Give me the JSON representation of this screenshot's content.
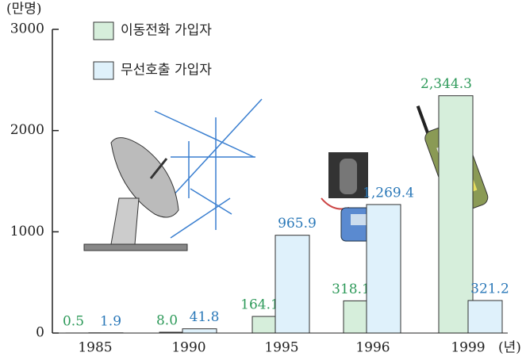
{
  "chart_data": {
    "type": "bar",
    "y_axis_label": "(만명)",
    "x_axis_label": "(년)",
    "categories": [
      "1985",
      "1990",
      "1995",
      "1996",
      "1999"
    ],
    "series": [
      {
        "name": "이동전화 가입자",
        "color": "#d6eedb",
        "label_color": "#2e9a5a",
        "values": [
          0.5,
          8.0,
          164.1,
          318.1,
          2344.3
        ],
        "value_labels": [
          "0.5",
          "8.0",
          "164.1",
          "318.1",
          "2,344.3"
        ]
      },
      {
        "name": "무선호출 가입자",
        "color": "#dff1fb",
        "label_color": "#2a78b8",
        "values": [
          1.9,
          41.8,
          965.9,
          1269.4,
          321.2
        ],
        "value_labels": [
          "1.9",
          "41.8",
          "965.9",
          "1,269.4",
          "321.2"
        ]
      }
    ],
    "ylim": [
      0,
      3000
    ],
    "yticks": [
      0,
      1000,
      2000,
      3000
    ]
  }
}
